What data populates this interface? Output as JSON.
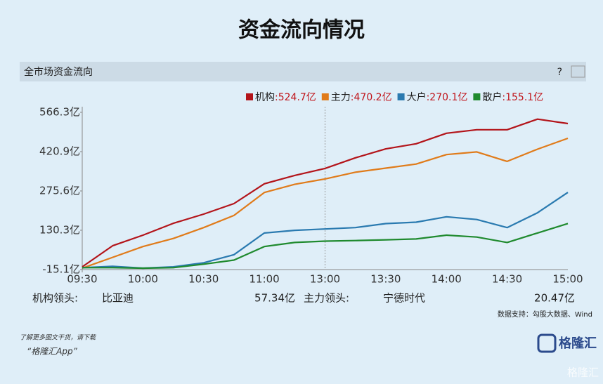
{
  "page": {
    "title": "资金流向情况",
    "panel_title": "全市场资金流向",
    "help": "?",
    "leader_row": [
      "机构领头:",
      "比亚迪",
      "57.34亿",
      "主力领头:",
      "宁德时代",
      "20.47亿"
    ],
    "source": "数据支持：勾股大数据、Wind",
    "footer_line": "了解更多图文干货，请下载",
    "footer_app": "“格隆汇App”",
    "logo": "格隆汇",
    "watermark": "格隆汇"
  },
  "chart_data": {
    "type": "line",
    "categories": [
      "09:30",
      null,
      "10:00",
      null,
      "10:30",
      null,
      "11:00",
      null,
      "13:00",
      null,
      "13:30",
      null,
      "14:00",
      null,
      "14:30",
      null,
      "15:00"
    ],
    "ylim": [
      -15.1,
      566.3
    ],
    "yticks": [
      {
        "value": 566.3,
        "label": "566.3亿"
      },
      {
        "value": 420.9,
        "label": "420.9亿"
      },
      {
        "value": 275.6,
        "label": "275.6亿"
      },
      {
        "value": 130.3,
        "label": "130.3亿"
      },
      {
        "value": -15.1,
        "label": "-15.1亿"
      }
    ],
    "series": [
      {
        "name": "机构",
        "latest_label": ":524.7亿",
        "color": "#b3141a",
        "values": [
          -5,
          73,
          112,
          156,
          190,
          229,
          302,
          333,
          359,
          398,
          431,
          450,
          489,
          502,
          502,
          541,
          524.7
        ]
      },
      {
        "name": "主力",
        "latest_label": ":470.2亿",
        "color": "#e07b1a",
        "values": [
          -10,
          30,
          70,
          100,
          140,
          185,
          270,
          300,
          320,
          345,
          360,
          375,
          410,
          420,
          385,
          430,
          470.2
        ]
      },
      {
        "name": "大户",
        "latest_label": ":270.1亿",
        "color": "#2a7ab0",
        "values": [
          -8,
          -3,
          -10,
          -5,
          10,
          40,
          120,
          130,
          135,
          140,
          155,
          160,
          180,
          170,
          140,
          195,
          270.1
        ]
      },
      {
        "name": "散户",
        "latest_label": ":155.1亿",
        "color": "#1f8a2e",
        "values": [
          -8,
          -8,
          -10,
          -8,
          5,
          20,
          70,
          85,
          90,
          92,
          95,
          98,
          112,
          105,
          85,
          120,
          155.1
        ]
      }
    ]
  }
}
